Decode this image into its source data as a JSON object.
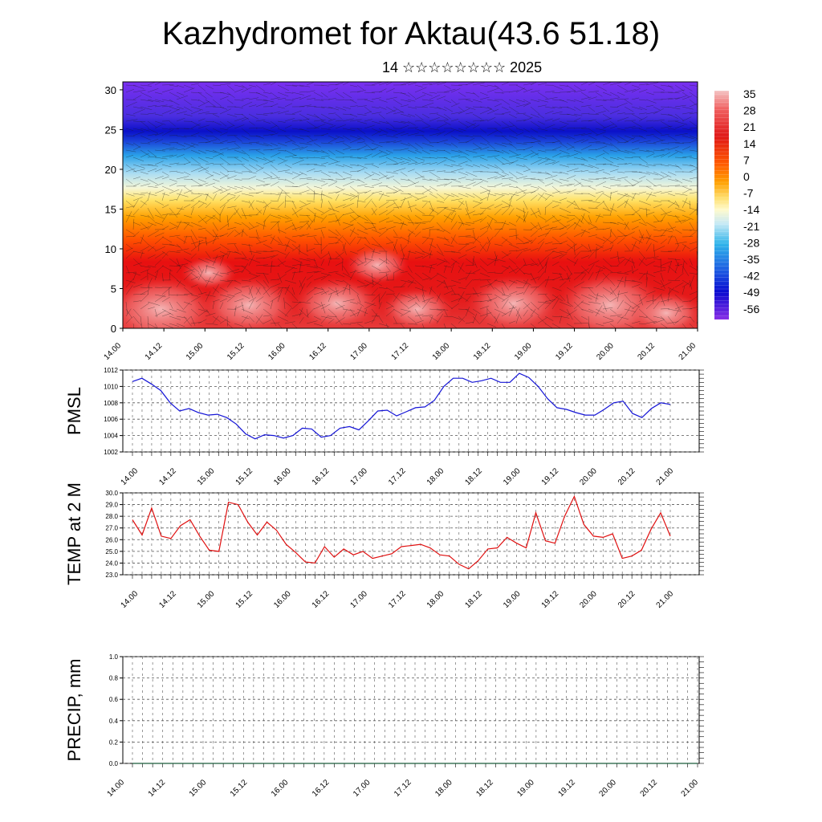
{
  "header": {
    "title": "Kazhydromet for Aktau(43.6 51.18)",
    "subtitle": "14 ☆☆☆☆☆☆☆☆ 2025"
  },
  "time_ticks": [
    "14.00",
    "14.12",
    "15.00",
    "15.12",
    "16.00",
    "16.12",
    "17.00",
    "17.12",
    "18.00",
    "18.12",
    "19.00",
    "19.12",
    "20.00",
    "20.12",
    "21.00"
  ],
  "colors": {
    "pmsl_line": "#1414d6",
    "temp_line": "#e01010",
    "precip_line": "#1a5c3a",
    "grid": "#555555"
  },
  "chart_data": [
    {
      "type": "heatmap",
      "name": "temperature-cross-section",
      "x": [
        "14.00",
        "14.12",
        "15.00",
        "15.12",
        "16.00",
        "16.12",
        "17.00",
        "17.12",
        "18.00",
        "18.12",
        "19.00",
        "19.12",
        "20.00",
        "20.12",
        "21.00"
      ],
      "y_ticks": [
        0,
        5,
        10,
        15,
        20,
        25,
        30
      ],
      "ylim": [
        0,
        31
      ],
      "wind_barbs": true,
      "colorbar": {
        "labels": [
          "35",
          "28",
          "21",
          "14",
          "7",
          "0",
          "-7",
          "-14",
          "-21",
          "-28",
          "-35",
          "-42",
          "-49",
          "-56"
        ],
        "range": [
          -60,
          38
        ]
      }
    },
    {
      "type": "line",
      "ylabel": "PMSL",
      "ylim": [
        1002,
        1012
      ],
      "y_ticks": [
        1002,
        1004,
        1006,
        1008,
        1010,
        1012
      ],
      "y_tick_labels": [
        "1002",
        "1004",
        "1006",
        "1008",
        "1010",
        "1012"
      ],
      "x_ticks": [
        "14.00",
        "14.12",
        "15.00",
        "15.12",
        "16.00",
        "16.12",
        "17.00",
        "17.12",
        "18.00",
        "18.12",
        "19.00",
        "19.12",
        "20.00",
        "20.12",
        "21.00"
      ],
      "values": [
        1010.6,
        1011.0,
        1010.3,
        1009.5,
        1008.0,
        1007.0,
        1007.3,
        1006.8,
        1006.5,
        1006.6,
        1006.2,
        1005.4,
        1004.2,
        1003.6,
        1004.1,
        1004.0,
        1003.7,
        1004.0,
        1004.9,
        1004.8,
        1003.8,
        1004.0,
        1004.9,
        1005.1,
        1004.7,
        1005.8,
        1007.0,
        1007.1,
        1006.4,
        1006.9,
        1007.4,
        1007.5,
        1008.3,
        1010.0,
        1011.0,
        1011.0,
        1010.5,
        1010.7,
        1011.0,
        1010.5,
        1010.5,
        1011.6,
        1011.1,
        1010.0,
        1008.5,
        1007.4,
        1007.2,
        1006.8,
        1006.5,
        1006.5,
        1007.2,
        1008.0,
        1008.2,
        1006.7,
        1006.2,
        1007.3,
        1008.0,
        1007.8
      ]
    },
    {
      "type": "line",
      "ylabel": "TEMP at 2 M",
      "ylim": [
        23,
        30
      ],
      "y_ticks": [
        23,
        24,
        25,
        26,
        27,
        28,
        29,
        30
      ],
      "y_tick_labels": [
        "23.0",
        "24.0",
        "25.0",
        "26.0",
        "27.0",
        "28.0",
        "29.0",
        "30.0"
      ],
      "x_ticks": [
        "14.00",
        "14.12",
        "15.00",
        "15.12",
        "16.00",
        "16.12",
        "17.00",
        "17.12",
        "18.00",
        "18.12",
        "19.00",
        "19.12",
        "20.00",
        "20.12",
        "21.00"
      ],
      "values": [
        27.7,
        26.4,
        28.7,
        26.3,
        26.1,
        27.2,
        27.7,
        26.3,
        25.1,
        25.0,
        29.2,
        29.0,
        27.5,
        26.4,
        27.5,
        26.8,
        25.6,
        24.9,
        24.1,
        24.0,
        25.4,
        24.5,
        25.2,
        24.7,
        25.0,
        24.4,
        24.6,
        24.8,
        25.4,
        25.5,
        25.6,
        25.3,
        24.7,
        24.6,
        23.9,
        23.5,
        24.2,
        25.2,
        25.3,
        26.2,
        25.7,
        25.3,
        28.3,
        25.9,
        25.7,
        28.0,
        29.7,
        27.3,
        26.3,
        26.2,
        26.5,
        24.4,
        24.6,
        25.1,
        26.9,
        28.3,
        26.3
      ]
    },
    {
      "type": "line",
      "ylabel": "PRECIP, mm",
      "ylim": [
        0,
        1
      ],
      "y_ticks": [
        0,
        0.2,
        0.4,
        0.6,
        0.8,
        1.0
      ],
      "y_tick_labels": [
        "0.0",
        "0.2",
        "0.4",
        "0.6",
        "0.8",
        "1.0"
      ],
      "x_ticks": [
        "14.00",
        "14.12",
        "15.00",
        "15.12",
        "16.00",
        "16.12",
        "17.00",
        "17.12",
        "18.00",
        "18.12",
        "19.00",
        "19.12",
        "20.00",
        "20.12",
        "21.00"
      ],
      "values": [
        0,
        0,
        0,
        0,
        0,
        0,
        0,
        0,
        0,
        0,
        0,
        0,
        0,
        0,
        0,
        0,
        0,
        0,
        0,
        0,
        0,
        0,
        0,
        0,
        0,
        0,
        0,
        0,
        0,
        0,
        0,
        0,
        0,
        0,
        0,
        0,
        0,
        0,
        0,
        0,
        0,
        0,
        0,
        0,
        0,
        0,
        0,
        0,
        0,
        0,
        0,
        0,
        0,
        0,
        0,
        0,
        0
      ]
    }
  ]
}
